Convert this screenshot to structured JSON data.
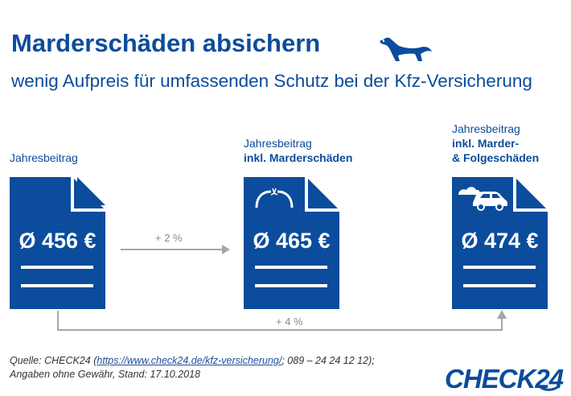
{
  "title": "Marderschäden absichern",
  "subtitle": "wenig Aufpreis für umfassenden Schutz bei der Kfz-Versicherung",
  "columns": [
    {
      "label_line1": "Jahresbeitrag",
      "label_bold1": "",
      "label_bold2": "",
      "price": "Ø 456 €",
      "icon": "none"
    },
    {
      "label_line1": "Jahresbeitrag",
      "label_bold1": "inkl. Marderschäden",
      "label_bold2": "",
      "price": "Ø 465 €",
      "icon": "broken-hose-icon"
    },
    {
      "label_line1": "Jahresbeitrag",
      "label_bold1": "inkl. Marder-",
      "label_bold2": "& Folgeschäden",
      "price": "Ø 474 €",
      "icon": "car-damage-icon"
    }
  ],
  "arrows": {
    "short_label": "+ 2 %",
    "long_label": "+ 4 %"
  },
  "source": {
    "prefix": "Quelle: CHECK24 (",
    "link": "https://www.check24.de/kfz-versicherung/",
    "suffix": "; 089 – 24 24 12 12);",
    "line2": "Angaben ohne Gewähr, Stand: 17.10.2018"
  },
  "logo_text": "CHECK24",
  "colors": {
    "brand_blue": "#0b4c9c",
    "arrow_gray": "#a6a6a6"
  }
}
